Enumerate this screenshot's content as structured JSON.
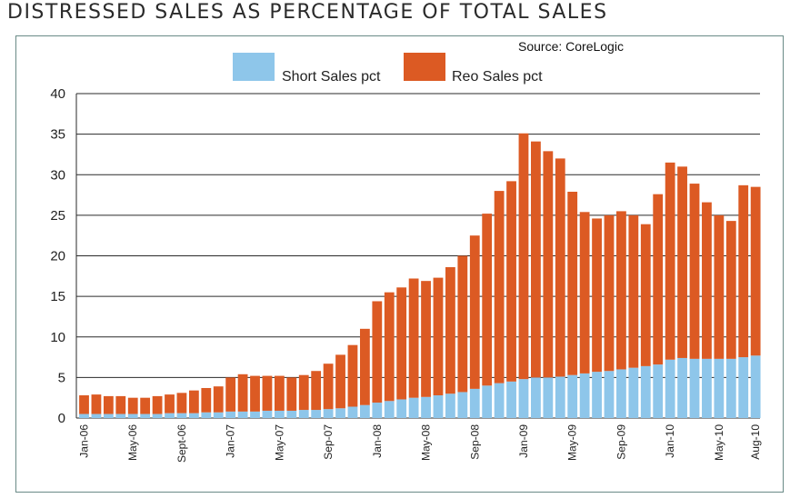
{
  "page_title": "DISTRESSED SALES AS PERCENTAGE OF TOTAL SALES",
  "source": "Source: CoreLogic",
  "colors": {
    "short": "#8ec6ea",
    "reo": "#dc5a23",
    "frame": "#6a8a87"
  },
  "chart_data": {
    "type": "bar",
    "stacked": true,
    "title": "DISTRESSED SALES AS PERCENTAGE OF TOTAL SALES",
    "xlabel": "",
    "ylabel": "",
    "ylim": [
      0,
      40
    ],
    "yticks": [
      0,
      5,
      10,
      15,
      20,
      25,
      30,
      35,
      40
    ],
    "grid": true,
    "legend": "top",
    "categories": [
      "Jan-06",
      "Feb-06",
      "Mar-06",
      "Apr-06",
      "May-06",
      "Jun-06",
      "Jul-06",
      "Aug-06",
      "Sept-06",
      "Oct-06",
      "Nov-06",
      "Dec-06",
      "Jan-07",
      "Feb-07",
      "Mar-07",
      "Apr-07",
      "May-07",
      "Jun-07",
      "Jul-07",
      "Aug-07",
      "Sep-07",
      "Oct-07",
      "Nov-07",
      "Dec-07",
      "Jan-08",
      "Feb-08",
      "Mar-08",
      "Apr-08",
      "May-08",
      "Jun-08",
      "Jul-08",
      "Aug-08",
      "Sep-08",
      "Oct-08",
      "Nov-08",
      "Dec-08",
      "Jan-09",
      "Feb-09",
      "Mar-09",
      "Apr-09",
      "May-09",
      "Jun-09",
      "Jul-09",
      "Aug-09",
      "Sep-09",
      "Oct-09",
      "Nov-09",
      "Dec-09",
      "Jan-10",
      "Feb-10",
      "Mar-10",
      "Apr-10",
      "May-10",
      "Jun-10",
      "Jul-10",
      "Aug-10"
    ],
    "x_tick_labels": [
      "Jan-06",
      "May-06",
      "Sept-06",
      "Jan-07",
      "May-07",
      "Sep-07",
      "Jan-08",
      "May-08",
      "Sep-08",
      "Jan-09",
      "May-09",
      "Sep-09",
      "Jan-10",
      "May-10",
      "Aug-10"
    ],
    "series": [
      {
        "name": "Short Sales pct",
        "color": "#8ec6ea",
        "values": [
          0.5,
          0.5,
          0.5,
          0.5,
          0.5,
          0.5,
          0.5,
          0.6,
          0.6,
          0.6,
          0.7,
          0.7,
          0.8,
          0.8,
          0.8,
          0.9,
          0.9,
          0.9,
          1.0,
          1.0,
          1.1,
          1.2,
          1.4,
          1.6,
          1.9,
          2.1,
          2.3,
          2.5,
          2.6,
          2.8,
          3.0,
          3.2,
          3.6,
          4.0,
          4.3,
          4.5,
          4.8,
          5.0,
          5.0,
          5.1,
          5.3,
          5.5,
          5.7,
          5.8,
          6.0,
          6.2,
          6.4,
          6.6,
          7.2,
          7.4,
          7.3,
          7.3,
          7.3,
          7.3,
          7.5,
          7.7
        ]
      },
      {
        "name": "Reo Sales pct",
        "color": "#dc5a23",
        "values": [
          2.3,
          2.4,
          2.2,
          2.2,
          2.0,
          2.0,
          2.2,
          2.3,
          2.5,
          2.8,
          3.0,
          3.2,
          4.2,
          4.6,
          4.4,
          4.3,
          4.3,
          4.1,
          4.3,
          4.8,
          5.6,
          6.6,
          7.6,
          9.4,
          12.5,
          13.4,
          13.8,
          14.7,
          14.3,
          14.5,
          15.6,
          16.8,
          18.9,
          21.2,
          23.7,
          24.7,
          30.3,
          29.1,
          27.9,
          26.9,
          22.6,
          19.9,
          18.9,
          19.2,
          19.5,
          18.8,
          17.5,
          21.0,
          24.3,
          23.6,
          21.6,
          19.3,
          17.7,
          17.0,
          21.2,
          20.8
        ]
      }
    ]
  }
}
